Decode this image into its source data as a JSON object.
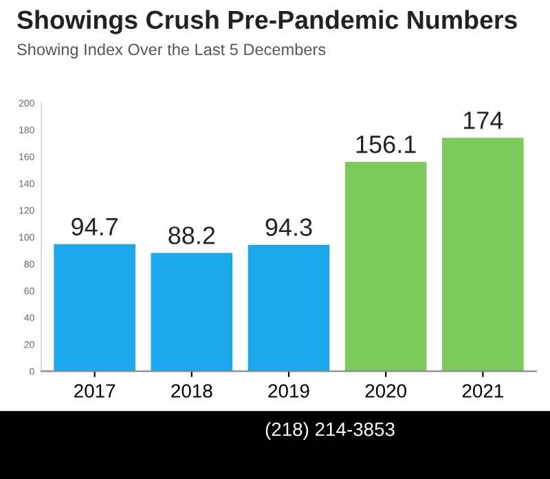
{
  "chart_data": {
    "type": "bar",
    "title": "Showings Crush Pre-Pandemic Numbers",
    "subtitle": "Showing Index Over the Last 5 Decembers",
    "categories": [
      "2017",
      "2018",
      "2019",
      "2020",
      "2021"
    ],
    "values": [
      94.7,
      88.2,
      94.3,
      156.1,
      174
    ],
    "colors": [
      "#1aa7ec",
      "#1aa7ec",
      "#1aa7ec",
      "#7ec95c",
      "#7ec95c"
    ],
    "value_labels": [
      "94.7",
      "88.2",
      "94.3",
      "156.1",
      "174"
    ],
    "ylim": [
      0,
      200
    ],
    "yticks": [
      0,
      20,
      40,
      60,
      80,
      100,
      120,
      140,
      160,
      180,
      200
    ],
    "grid": false,
    "annotations": [
      "(218) 214-3853"
    ]
  }
}
